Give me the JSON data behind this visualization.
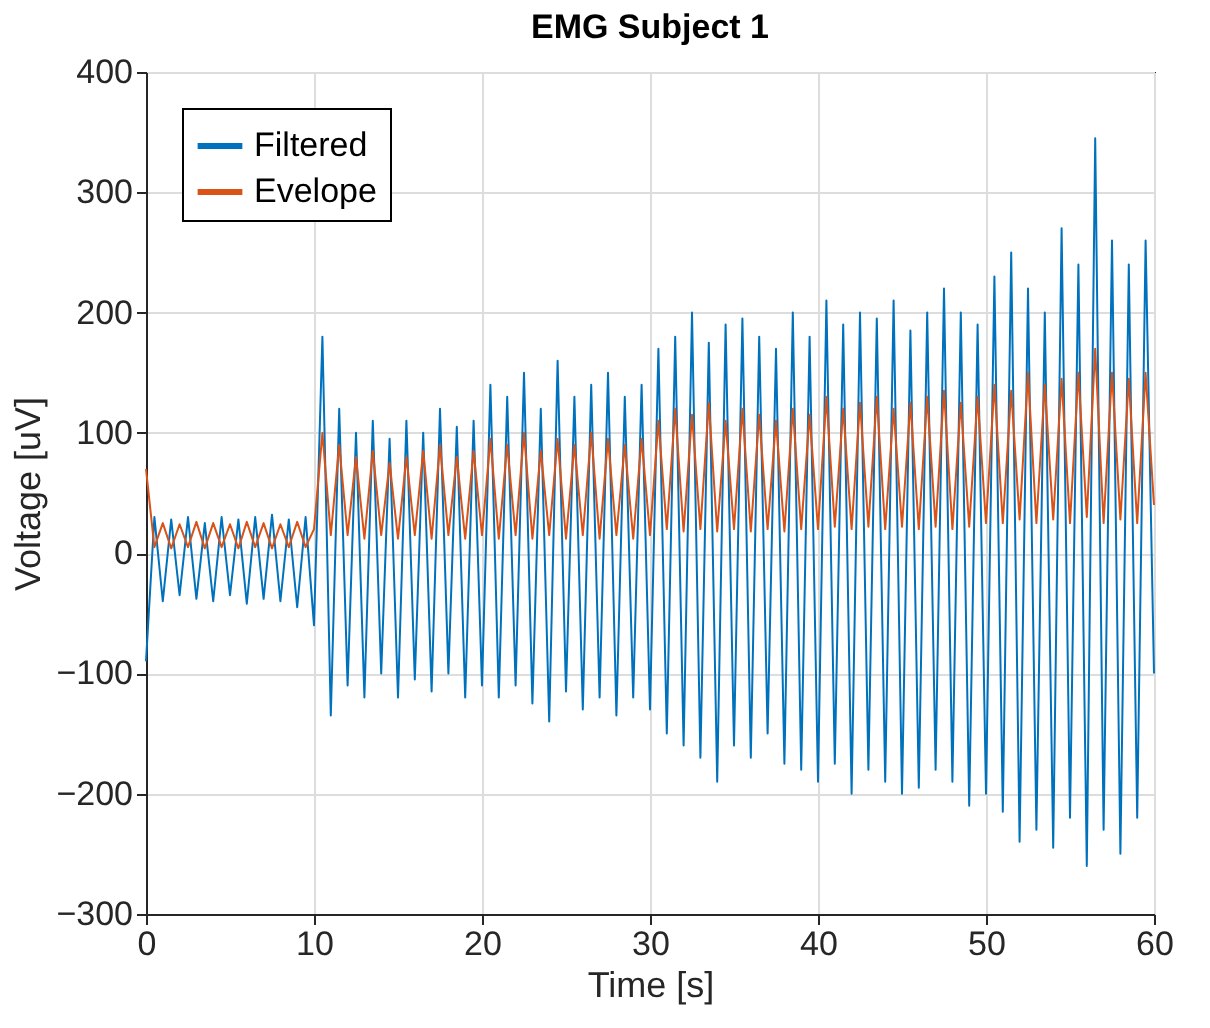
{
  "chart_data": {
    "type": "line",
    "title": "EMG Subject 1",
    "xlabel": "Time [s]",
    "ylabel": "Voltage [uV]",
    "x": [
      0,
      0.5,
      1,
      1.5,
      2,
      2.5,
      3,
      3.5,
      4,
      4.5,
      5,
      5.5,
      6,
      6.5,
      7,
      7.5,
      8,
      8.5,
      9,
      9.5,
      10,
      10.5,
      11,
      11.5,
      12,
      12.5,
      13,
      13.5,
      14,
      14.5,
      15,
      15.5,
      16,
      16.5,
      17,
      17.5,
      18,
      18.5,
      19,
      19.5,
      20,
      20.5,
      21,
      21.5,
      22,
      22.5,
      23,
      23.5,
      24,
      24.5,
      25,
      25.5,
      26,
      26.5,
      27,
      27.5,
      28,
      28.5,
      29,
      29.5,
      30,
      30.5,
      31,
      31.5,
      32,
      32.5,
      33,
      33.5,
      34,
      34.5,
      35,
      35.5,
      36,
      36.5,
      37,
      37.5,
      38,
      38.5,
      39,
      39.5,
      40,
      40.5,
      41,
      41.5,
      42,
      42.5,
      43,
      43.5,
      44,
      44.5,
      45,
      45.5,
      46,
      46.5,
      47,
      47.5,
      48,
      48.5,
      49,
      49.5,
      50,
      50.5,
      51,
      51.5,
      52,
      52.5,
      53,
      53.5,
      54,
      54.5,
      55,
      55.5,
      56,
      56.5,
      57,
      57.5,
      58,
      58.5,
      59,
      59.5,
      60
    ],
    "series": [
      {
        "name": "Filtered",
        "color": "#0072bd",
        "values": [
          -90,
          30,
          -40,
          28,
          -35,
          30,
          -38,
          25,
          -40,
          30,
          -35,
          28,
          -42,
          30,
          -38,
          32,
          -40,
          28,
          -45,
          30,
          -60,
          180,
          -135,
          120,
          -110,
          100,
          -120,
          110,
          -100,
          95,
          -120,
          110,
          -105,
          100,
          -115,
          120,
          -100,
          105,
          -120,
          110,
          -110,
          140,
          -120,
          130,
          -110,
          150,
          -125,
          120,
          -140,
          160,
          -115,
          130,
          -130,
          140,
          -120,
          150,
          -135,
          130,
          -120,
          140,
          -130,
          170,
          -150,
          180,
          -160,
          200,
          -170,
          175,
          -190,
          190,
          -160,
          195,
          -170,
          180,
          -150,
          170,
          -175,
          200,
          -180,
          180,
          -190,
          210,
          -175,
          190,
          -200,
          200,
          -180,
          195,
          -190,
          210,
          -200,
          185,
          -195,
          200,
          -180,
          220,
          -190,
          200,
          -210,
          190,
          -200,
          230,
          -215,
          250,
          -240,
          220,
          -230,
          200,
          -245,
          270,
          -220,
          240,
          -260,
          345,
          -230,
          260,
          -250,
          240,
          -220,
          260,
          -100
        ]
      },
      {
        "name": "Evelope",
        "color": "#d95319",
        "values": [
          70,
          5,
          25,
          4,
          24,
          5,
          26,
          4,
          25,
          5,
          24,
          4,
          26,
          5,
          25,
          4,
          24,
          5,
          26,
          5,
          20,
          100,
          15,
          90,
          15,
          80,
          12,
          85,
          15,
          75,
          12,
          80,
          15,
          85,
          12,
          90,
          15,
          80,
          12,
          85,
          15,
          95,
          12,
          90,
          15,
          100,
          12,
          85,
          15,
          95,
          12,
          90,
          15,
          100,
          12,
          95,
          15,
          90,
          12,
          95,
          15,
          110,
          20,
          120,
          18,
          115,
          20,
          125,
          18,
          110,
          20,
          120,
          18,
          115,
          20,
          110,
          18,
          120,
          20,
          115,
          20,
          130,
          22,
          120,
          20,
          125,
          22,
          130,
          20,
          120,
          22,
          125,
          20,
          130,
          22,
          135,
          20,
          125,
          22,
          130,
          25,
          140,
          25,
          135,
          28,
          150,
          25,
          140,
          28,
          145,
          25,
          150,
          30,
          170,
          25,
          150,
          28,
          145,
          25,
          150,
          40
        ]
      }
    ],
    "xlim": [
      0,
      60
    ],
    "xticks": [
      0,
      10,
      20,
      30,
      40,
      50,
      60
    ],
    "ylim": [
      -300,
      400
    ],
    "yticks": [
      -300,
      -200,
      -100,
      0,
      100,
      200,
      300,
      400
    ],
    "grid": true,
    "legend": "top left"
  }
}
